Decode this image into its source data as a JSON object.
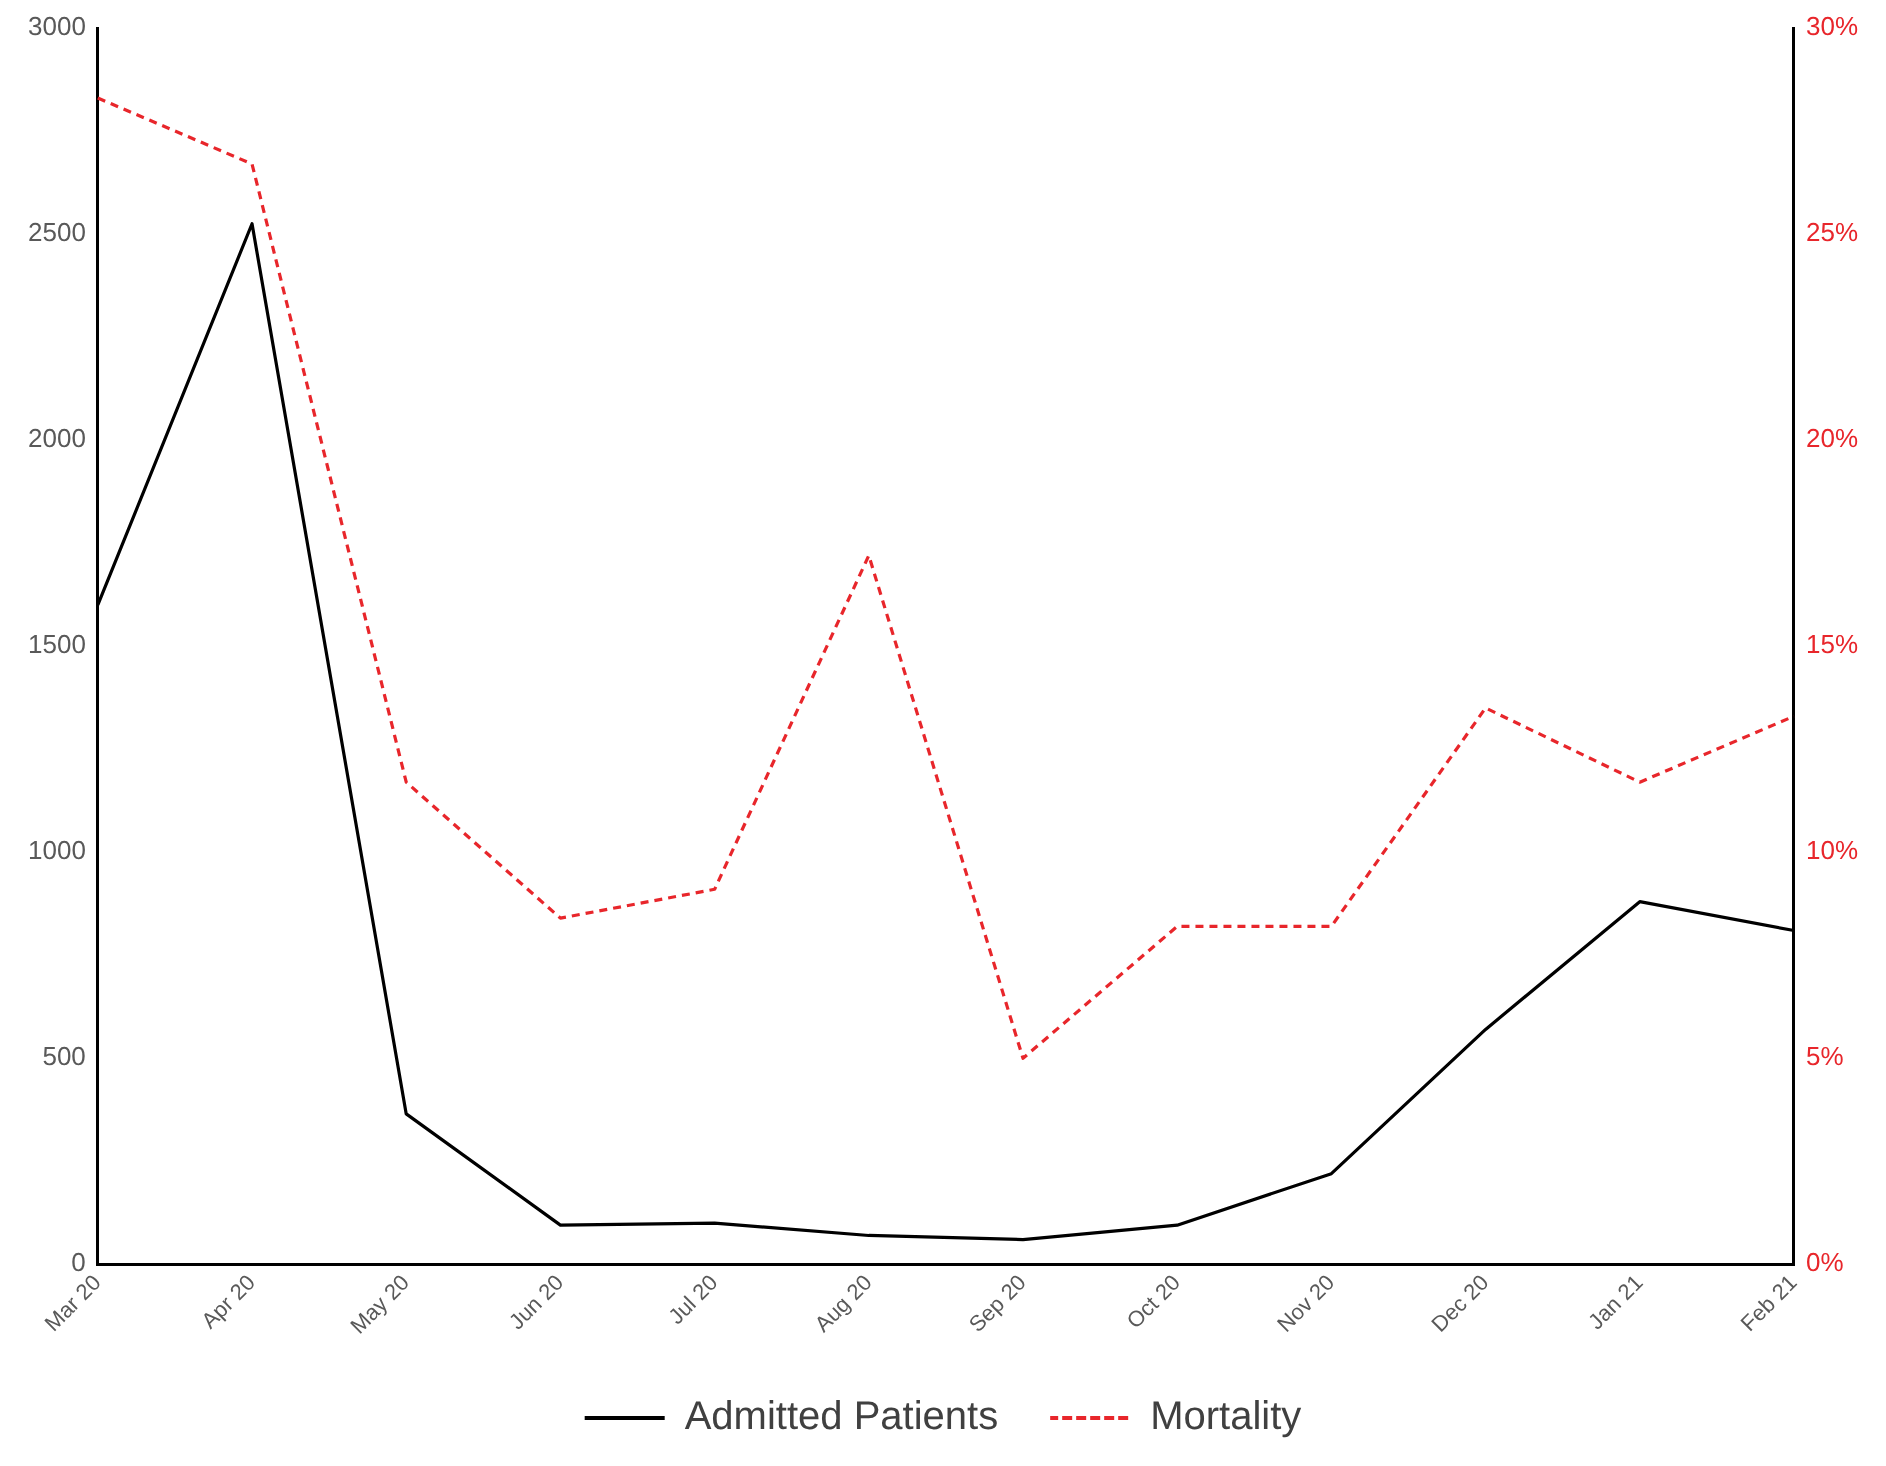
{
  "chart_data": {
    "type": "line",
    "categories": [
      "Mar 20",
      "Apr 20",
      "May 20",
      "Jun 20",
      "Jul 20",
      "Aug 20",
      "Sep 20",
      "Oct 20",
      "Nov 20",
      "Dec 20",
      "Jan 21",
      "Feb 21"
    ],
    "series": [
      {
        "name": "Admitted Patients",
        "color": "#000000",
        "line_style": "solid",
        "values": [
          1600,
          2525,
          365,
          95,
          100,
          70,
          60,
          95,
          220,
          570,
          880,
          810
        ]
      },
      {
        "name": "Mortality",
        "color": "#e8262b",
        "line_style": "dashed",
        "axis": "y2",
        "values": [
          28.3,
          26.7,
          11.7,
          8.4,
          9.1,
          17.2,
          5.0,
          8.2,
          8.2,
          13.5,
          11.7,
          13.3
        ]
      }
    ],
    "ylim": [
      0,
      3000
    ],
    "yticks": [
      0,
      500,
      1000,
      1500,
      2000,
      2500,
      3000
    ],
    "y2lim": [
      0,
      30
    ],
    "y2ticks": [
      {
        "value": 0,
        "label": "0%"
      },
      {
        "value": 5,
        "label": "5%"
      },
      {
        "value": 10,
        "label": "10%"
      },
      {
        "value": 15,
        "label": "15%"
      },
      {
        "value": 20,
        "label": "20%"
      },
      {
        "value": 25,
        "label": "25%"
      },
      {
        "value": 30,
        "label": "30%"
      }
    ],
    "grid": false,
    "legend": "bottom",
    "marker": "none"
  }
}
